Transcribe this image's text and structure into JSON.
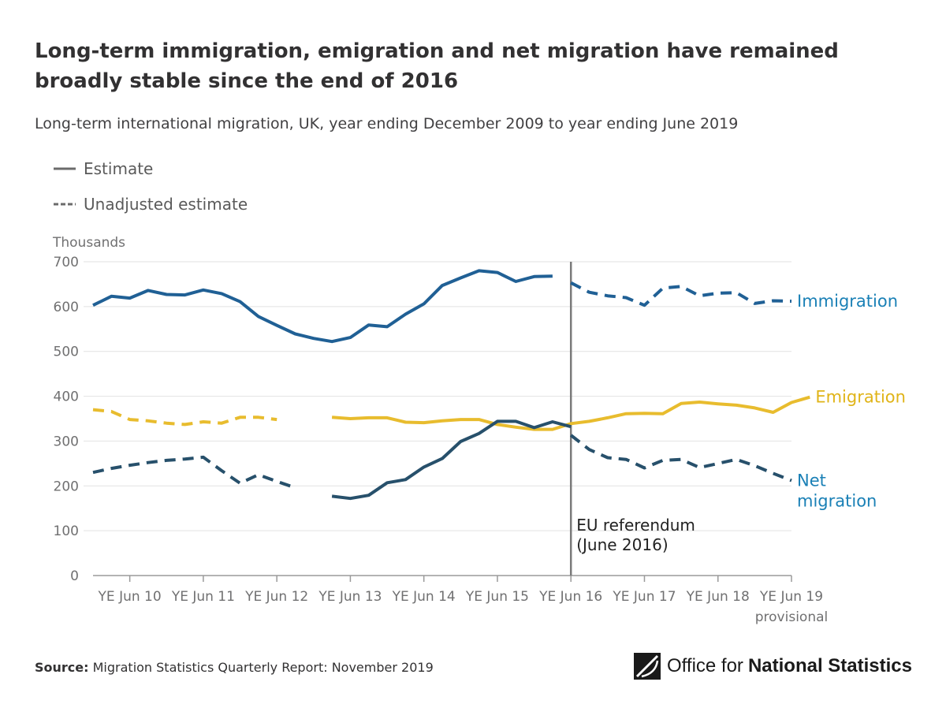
{
  "header": {
    "title": "Long-term immigration, emigration and net migration have remained broadly stable since the end of 2016",
    "subtitle": "Long-term international migration, UK, year ending December 2009 to year ending June 2019"
  },
  "legend": {
    "estimate": "Estimate",
    "unadjusted": "Unadjusted estimate"
  },
  "footer": {
    "source_label": "Source:",
    "source_text": "Migration Statistics Quarterly Report: November 2019",
    "logo_text_regular": "Office for",
    "logo_text_bold": "National Statistics"
  },
  "chart_data": {
    "type": "line",
    "ylabel": "Thousands",
    "ylim": [
      0,
      700
    ],
    "yticks": [
      0,
      100,
      200,
      300,
      400,
      500,
      600,
      700
    ],
    "x_ticks": [
      {
        "period": "YE Jun 10",
        "label": "YE Jun 10"
      },
      {
        "period": "YE Jun 11",
        "label": "YE Jun 11"
      },
      {
        "period": "YE Jun 12",
        "label": "YE Jun 12"
      },
      {
        "period": "YE Jun 13",
        "label": "YE Jun 13"
      },
      {
        "period": "YE Jun 14",
        "label": "YE Jun 14"
      },
      {
        "period": "YE Jun 15",
        "label": "YE Jun 15"
      },
      {
        "period": "YE Jun 16",
        "label": "YE Jun 16"
      },
      {
        "period": "YE Jun 17",
        "label": "YE Jun 17"
      },
      {
        "period": "YE Jun 18",
        "label": "YE Jun 18"
      },
      {
        "period": "YE Jun 19",
        "label": "YE Jun 19",
        "label2": "provisional"
      }
    ],
    "periods": [
      "YE Dec 09",
      "YE Mar 10",
      "YE Jun 10",
      "YE Sep 10",
      "YE Dec 10",
      "YE Mar 11",
      "YE Jun 11",
      "YE Sep 11",
      "YE Dec 11",
      "YE Mar 12",
      "YE Jun 12",
      "YE Sep 12",
      "YE Dec 12",
      "YE Mar 13",
      "YE Jun 13",
      "YE Sep 13",
      "YE Dec 13",
      "YE Mar 14",
      "YE Jun 14",
      "YE Sep 14",
      "YE Dec 14",
      "YE Mar 15",
      "YE Jun 15",
      "YE Sep 15",
      "YE Dec 15",
      "YE Mar 16",
      "YE Jun 16",
      "YE Sep 16",
      "YE Dec 16",
      "YE Mar 17",
      "YE Jun 17",
      "YE Sep 17",
      "YE Dec 17",
      "YE Mar 18",
      "YE Jun 18",
      "YE Sep 18",
      "YE Dec 18",
      "YE Mar 19",
      "YE Jun 19"
    ],
    "annotation": {
      "period": "YE Jun 16",
      "line1": "EU referendum",
      "line2": "(June 2016)"
    },
    "series": [
      {
        "name": "Immigration",
        "label_lines": [
          "Immigration"
        ],
        "color": "#206095",
        "label_color": "#1a80b6",
        "segments": [
          {
            "style": "solid",
            "start": "YE Dec 09",
            "values": [
              603,
              623,
              619,
              636,
              627,
              626,
              637,
              629,
              611,
              578,
              558,
              539,
              529,
              522,
              531,
              559,
              555,
              583,
              606,
              647,
              664,
              680,
              676,
              656,
              667,
              668
            ]
          },
          {
            "style": "dashed",
            "start": "YE Jun 16",
            "values": [
              653,
              632,
              624,
              620,
              603,
              641,
              645,
              624,
              630,
              631,
              607,
              613,
              612
            ]
          }
        ]
      },
      {
        "name": "Emigration",
        "label_lines": [
          "Emigration"
        ],
        "color": "#e8bc2e",
        "label_color": "#e0b418",
        "segments": [
          {
            "style": "dashed",
            "start": "YE Dec 09",
            "values": [
              370,
              366,
              348,
              345,
              340,
              337,
              343,
              340,
              353,
              353,
              348
            ]
          },
          {
            "style": "solid",
            "start": "YE Mar 13",
            "values": [
              353,
              350,
              352,
              352,
              342,
              341,
              345,
              348,
              348,
              337,
              331,
              326,
              326,
              339,
              344,
              352,
              361,
              362,
              361,
              384,
              387,
              383,
              380,
              374,
              364,
              386,
              398
            ]
          }
        ]
      },
      {
        "name": "Net migration",
        "label_lines": [
          "Net",
          "migration"
        ],
        "color": "#27506b",
        "label_color": "#1a80b6",
        "segments": [
          {
            "style": "dashed",
            "start": "YE Dec 09",
            "values": [
              230,
              239,
              246,
              252,
              257,
              260,
              264,
              234,
              206,
              225,
              210,
              196
            ]
          },
          {
            "style": "solid",
            "start": "YE Mar 13",
            "values": [
              177,
              172,
              179,
              207,
              214,
              242,
              261,
              299,
              317,
              344,
              344,
              330,
              343,
              332
            ]
          },
          {
            "style": "dashed",
            "start": "YE Jun 16",
            "values": [
              313,
              281,
              263,
              259,
              240,
              257,
              259,
              241,
              250,
              259,
              245,
              228,
              212
            ]
          }
        ]
      }
    ]
  }
}
